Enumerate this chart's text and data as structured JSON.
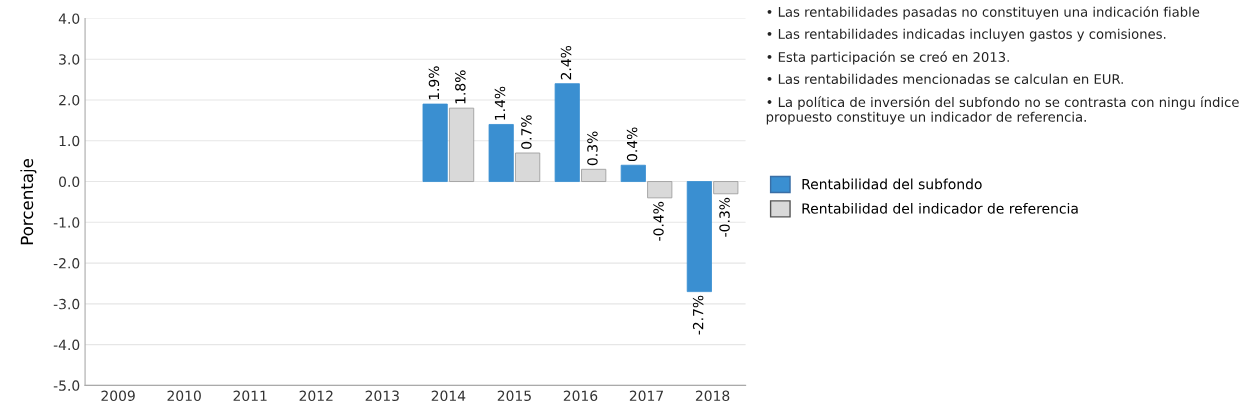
{
  "chart_data": {
    "type": "bar",
    "ylabel": "Porcentaje",
    "categories": [
      "2009",
      "2010",
      "2011",
      "2012",
      "2013",
      "2014",
      "2015",
      "2016",
      "2017",
      "2018"
    ],
    "series": [
      {
        "name": "Rentabilidad del subfondo",
        "color": "#3a8fd1",
        "values": [
          null,
          null,
          null,
          null,
          null,
          1.9,
          1.4,
          2.4,
          0.4,
          -2.7
        ],
        "value_labels": [
          null,
          null,
          null,
          null,
          null,
          "1.9%",
          "1.4%",
          "2.4%",
          "0.4%",
          "-2.7%"
        ]
      },
      {
        "name": "Rentabilidad del indicador de referencia",
        "color": "#d9d9d9",
        "values": [
          null,
          null,
          null,
          null,
          null,
          1.8,
          0.7,
          0.3,
          -0.4,
          -0.3
        ],
        "value_labels": [
          null,
          null,
          null,
          null,
          null,
          "1.8%",
          "0.7%",
          "0.3%",
          "-0.4%",
          "-0.3%"
        ]
      }
    ],
    "ylim": [
      -5.0,
      4.0
    ],
    "yticks": [
      {
        "value": -5,
        "label": "-5.0"
      },
      {
        "value": -4,
        "label": "-4.0"
      },
      {
        "value": -3,
        "label": "-3.0"
      },
      {
        "value": -2,
        "label": "-2.0"
      },
      {
        "value": -1,
        "label": "-1.0"
      },
      {
        "value": 0,
        "label": "0.0"
      },
      {
        "value": 1,
        "label": "1.0"
      },
      {
        "value": 2,
        "label": "2.0"
      },
      {
        "value": 3,
        "label": "3.0"
      },
      {
        "value": 4,
        "label": "4.0"
      }
    ],
    "grid": "y",
    "legend": "right",
    "annotations": [
      "• Las rentabilidades pasadas no constituyen una indicación fiable",
      "• Las rentabilidades indicadas incluyen gastos y comisiones.",
      "• Esta participación se creó en 2013.",
      "• Las rentabilidades mencionadas se calculan en EUR.",
      "• La política de inversión del subfondo no se contrasta con ningu índice propuesto constituye un indicador de referencia."
    ]
  }
}
